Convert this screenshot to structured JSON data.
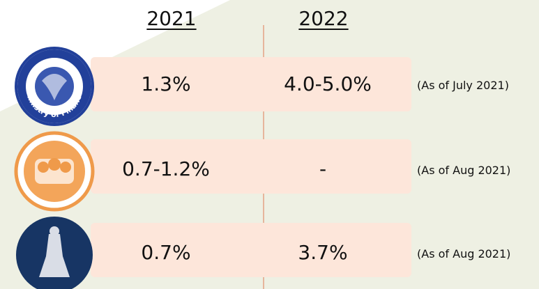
{
  "header": {
    "columns": [
      "2021",
      "2022"
    ]
  },
  "table": {
    "rows": [
      [
        "1.3%",
        "4.0-5.0%",
        "(As of July 2021)"
      ],
      [
        "0.7-1.2%",
        "-",
        "(As of Aug 2021)"
      ],
      [
        "0.7%",
        "3.7%",
        "(As of Aug 2021)"
      ]
    ]
  },
  "logos": {
    "ministry": "Ministry of Finance"
  }
}
